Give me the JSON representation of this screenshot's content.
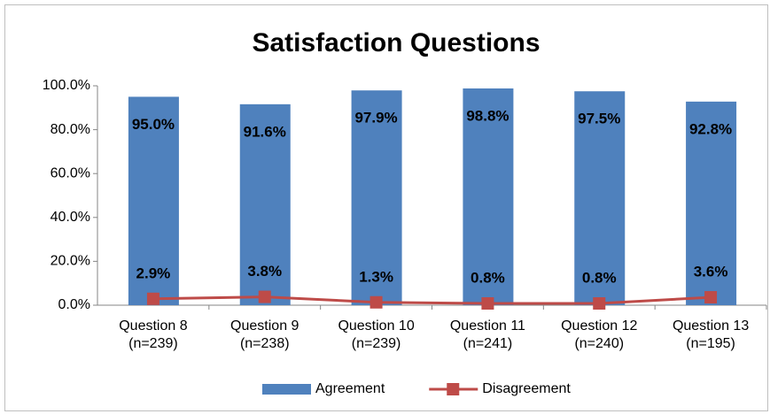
{
  "chart_data": {
    "type": "bar",
    "title": "Satisfaction Questions",
    "categories": [
      [
        "Question 8",
        "(n=239)"
      ],
      [
        "Question 9",
        "(n=238)"
      ],
      [
        "Question 10",
        "(n=239)"
      ],
      [
        "Question 11",
        "(n=241)"
      ],
      [
        "Question 12",
        "(n=240)"
      ],
      [
        "Question 13",
        "(n=195)"
      ]
    ],
    "series": [
      {
        "name": "Agreement",
        "type": "bar",
        "color": "#4f81bd",
        "values": [
          95.0,
          91.6,
          97.9,
          98.8,
          97.5,
          92.8
        ],
        "value_labels": [
          "95.0%",
          "91.6%",
          "97.9%",
          "98.8%",
          "97.5%",
          "92.8%"
        ]
      },
      {
        "name": "Disagreement",
        "type": "line",
        "color": "#be4b48",
        "values": [
          2.9,
          3.8,
          1.3,
          0.8,
          0.8,
          3.6
        ],
        "value_labels": [
          "2.9%",
          "3.8%",
          "1.3%",
          "0.8%",
          "0.8%",
          "3.6%"
        ]
      }
    ],
    "ylim": [
      0,
      100
    ],
    "yticks": [
      {
        "value": 0,
        "label": "0.0%"
      },
      {
        "value": 20,
        "label": "20.0%"
      },
      {
        "value": 40,
        "label": "40.0%"
      },
      {
        "value": 60,
        "label": "60.0%"
      },
      {
        "value": 80,
        "label": "80.0%"
      },
      {
        "value": 100,
        "label": "100.0%"
      }
    ],
    "legend": "bottom"
  }
}
